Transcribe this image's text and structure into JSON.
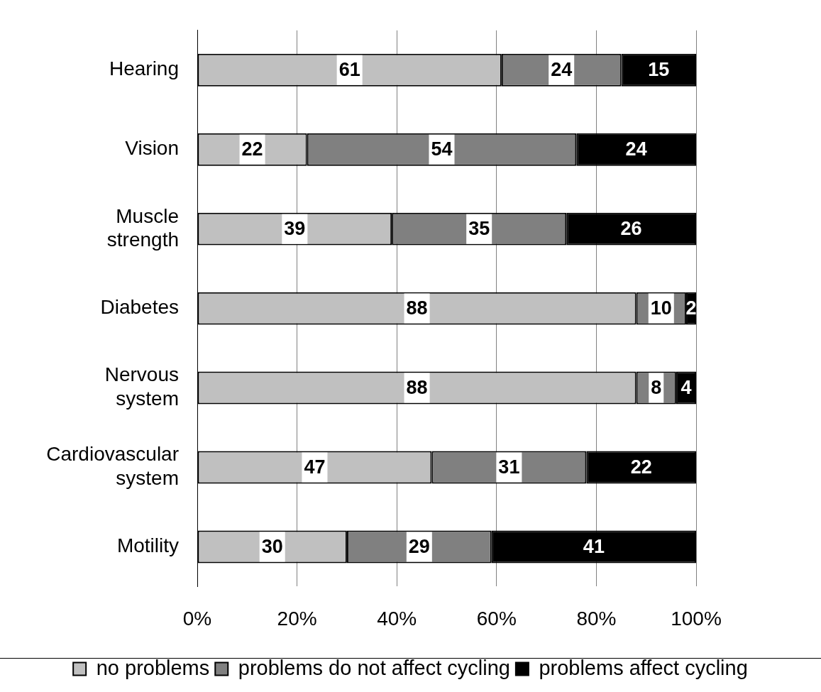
{
  "chart_data": {
    "type": "bar",
    "orientation": "horizontal",
    "stacked": true,
    "categories": [
      "Hearing",
      "Vision",
      "Muscle strength",
      "Diabetes",
      "Nervous system",
      "Cardiovascular system",
      "Motility"
    ],
    "series": [
      {
        "name": "no problems",
        "color": "#c0c0c0",
        "values": [
          61,
          22,
          39,
          88,
          88,
          47,
          30
        ]
      },
      {
        "name": "problems do not affect cycling",
        "color": "#808080",
        "values": [
          24,
          54,
          35,
          10,
          8,
          31,
          29
        ]
      },
      {
        "name": "problems affect cycling",
        "color": "#000000",
        "values": [
          15,
          24,
          26,
          2,
          4,
          22,
          41
        ]
      }
    ],
    "xlim": [
      0,
      100
    ],
    "xticks": [
      {
        "value": 0,
        "label": "0%"
      },
      {
        "value": 20,
        "label": "20%"
      },
      {
        "value": 40,
        "label": "40%"
      },
      {
        "value": 60,
        "label": "60%"
      },
      {
        "value": 80,
        "label": "80%"
      },
      {
        "value": 100,
        "label": "100%"
      }
    ],
    "grid": "x",
    "legend": "bottom",
    "data_labels": true
  }
}
